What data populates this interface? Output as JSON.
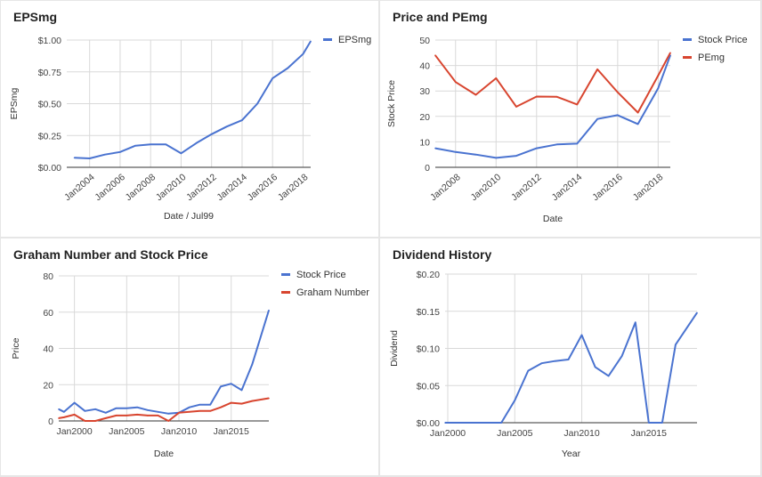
{
  "chart_data": [
    {
      "type": "line",
      "title": "EPSmg",
      "xlabel": "Date / Jul99",
      "ylabel": "EPSmg",
      "tick_labels_x": [
        "Jan2004",
        "Jan2006",
        "Jan2008",
        "Jan2010",
        "Jan2012",
        "Jan2014",
        "Jan2016",
        "Jan2018"
      ],
      "tick_labels_y": [
        "$0.00",
        "$0.25",
        "$0.50",
        "$0.75",
        "$1.00"
      ],
      "x_ticks": [
        2004,
        2006,
        2008,
        2010,
        2012,
        2014,
        2016,
        2018
      ],
      "y_ticks": [
        0,
        0.25,
        0.5,
        0.75,
        1.0
      ],
      "xlim": [
        2002.5,
        2018.5
      ],
      "ylim": [
        0,
        1.0
      ],
      "grid": true,
      "legend": "right",
      "series": [
        {
          "name": "EPSmg",
          "color": "#4a73d0",
          "x": [
            2003,
            2004,
            2005,
            2006,
            2007,
            2008,
            2009,
            2010,
            2011,
            2012,
            2013,
            2014,
            2015,
            2016,
            2017,
            2018,
            2018.5
          ],
          "y": [
            0.075,
            0.07,
            0.1,
            0.12,
            0.17,
            0.18,
            0.18,
            0.11,
            0.19,
            0.26,
            0.32,
            0.37,
            0.5,
            0.7,
            0.78,
            0.89,
            0.99
          ]
        }
      ]
    },
    {
      "type": "line",
      "title": "Price and PEmg",
      "xlabel": "Date",
      "ylabel": "Stock Price",
      "tick_labels_x": [
        "Jan2008",
        "Jan2010",
        "Jan2012",
        "Jan2014",
        "Jan2016",
        "Jan2018"
      ],
      "tick_labels_y": [
        "0",
        "10",
        "20",
        "30",
        "40",
        "50"
      ],
      "x_ticks": [
        2008,
        2010,
        2012,
        2014,
        2016,
        2018
      ],
      "y_ticks": [
        0,
        10,
        20,
        30,
        40,
        50
      ],
      "xlim": [
        2007,
        2018.6
      ],
      "ylim": [
        0,
        50
      ],
      "grid": true,
      "legend": "right",
      "series": [
        {
          "name": "Stock Price",
          "color": "#4a73d0",
          "x": [
            2007,
            2008,
            2009,
            2010,
            2011,
            2012,
            2013,
            2014,
            2015,
            2016,
            2017,
            2018,
            2018.6
          ],
          "y": [
            7.5,
            6,
            5,
            3.7,
            4.5,
            7.5,
            9,
            9.3,
            19,
            20.5,
            17,
            31,
            44
          ]
        },
        {
          "name": "PEmg",
          "color": "#d8452f",
          "x": [
            2007,
            2008,
            2009,
            2010,
            2011,
            2012,
            2013,
            2014,
            2015,
            2016,
            2017,
            2018,
            2018.6
          ],
          "y": [
            44,
            33.5,
            28.5,
            35,
            23.8,
            27.8,
            27.7,
            24.7,
            38.5,
            29.5,
            21.5,
            36,
            45
          ]
        }
      ]
    },
    {
      "type": "line",
      "title": "Graham Number and Stock Price",
      "xlabel": "Date",
      "ylabel": "Price",
      "tick_labels_x": [
        "Jan2000",
        "Jan2005",
        "Jan2010",
        "Jan2015"
      ],
      "tick_labels_y": [
        "0",
        "20",
        "40",
        "60",
        "80"
      ],
      "x_ticks": [
        2000,
        2005,
        2010,
        2015
      ],
      "y_ticks": [
        0,
        20,
        40,
        60,
        80
      ],
      "xlim": [
        1998.5,
        2018.6
      ],
      "ylim": [
        0,
        80
      ],
      "grid": true,
      "legend": "right",
      "series": [
        {
          "name": "Stock Price",
          "color": "#4a73d0",
          "x": [
            1998.5,
            1999,
            2000,
            2001,
            2002,
            2003,
            2004,
            2005,
            2006,
            2007,
            2008,
            2009,
            2010,
            2011,
            2012,
            2013,
            2014,
            2015,
            2016,
            2017,
            2018.6
          ],
          "y": [
            6.5,
            5,
            10,
            5.5,
            6.5,
            4.5,
            7,
            7,
            7.5,
            6,
            5,
            4,
            4.5,
            7.5,
            9,
            9,
            19,
            20.5,
            17,
            31,
            61
          ]
        },
        {
          "name": "Graham Number",
          "color": "#d8452f",
          "x": [
            1998.5,
            1999,
            2000,
            2001,
            2002,
            2003,
            2004,
            2005,
            2006,
            2007,
            2008,
            2009,
            2010,
            2011,
            2012,
            2013,
            2014,
            2015,
            2016,
            2017,
            2018.6
          ],
          "y": [
            1.5,
            2,
            3.5,
            0,
            0,
            1.5,
            3,
            3,
            3.5,
            3,
            3,
            0,
            4.5,
            5,
            5.5,
            5.5,
            7.5,
            10,
            9.5,
            11,
            12.5
          ]
        }
      ]
    },
    {
      "type": "line",
      "title": "Dividend History",
      "xlabel": "Year",
      "ylabel": "Dividend",
      "tick_labels_x": [
        "Jan2000",
        "Jan2005",
        "Jan2010",
        "Jan2015"
      ],
      "tick_labels_y": [
        "$0.00",
        "$0.05",
        "$0.10",
        "$0.15",
        "$0.20"
      ],
      "x_ticks": [
        2000,
        2005,
        2010,
        2015
      ],
      "y_ticks": [
        0,
        0.05,
        0.1,
        0.15,
        0.2
      ],
      "xlim": [
        1999.8,
        2018.6
      ],
      "ylim": [
        0,
        0.2
      ],
      "grid": true,
      "series": [
        {
          "name": "Dividend",
          "color": "#4a73d0",
          "x": [
            1999.8,
            2004,
            2005,
            2006,
            2007,
            2008,
            2009,
            2010,
            2011,
            2012,
            2013,
            2014,
            2015,
            2016,
            2017,
            2018.6
          ],
          "y": [
            0,
            0,
            0.03,
            0.07,
            0.08,
            0.083,
            0.085,
            0.118,
            0.075,
            0.063,
            0.09,
            0.135,
            0,
            0,
            0.105,
            0.148
          ]
        }
      ]
    }
  ]
}
